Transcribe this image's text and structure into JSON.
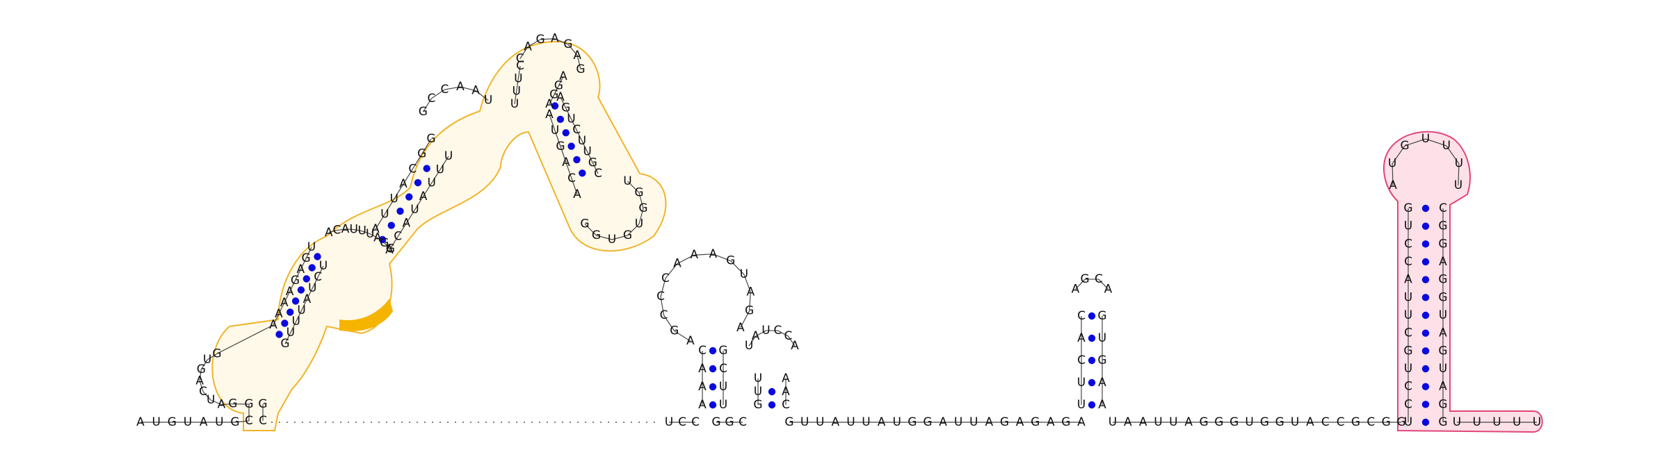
{
  "diagram": {
    "type": "rna-secondary-structure",
    "colors": {
      "background": "#ffffff",
      "nucleotide_text": "#111111",
      "backbone": "#444444",
      "base_pair_dot": "#0a0adf",
      "domain_orange_outline": "#f0b429",
      "domain_orange_fill": "#fff9ea",
      "domain_orange_highlight": "#f5b400",
      "domain_pink_outline": "#e0457a",
      "domain_pink_fill": "#fde0e8"
    },
    "domains": [
      {
        "name": "orange-domain",
        "color": "#f0b429",
        "highlighted_bases": 3
      },
      {
        "name": "pink-domain",
        "color": "#e0457a"
      }
    ],
    "strands": {
      "five_prime_leader": "AUGUAUG",
      "orange_left_stem": "CAUAGUAUAAAAGAGUACAUUUAGGCCAAUUUCAGAG",
      "orange_right_stem": "AGUCUUGCUGGUGUGGACAUAAGUUGAUUACAUGUGGGCUCUUUGAC",
      "spacer": "",
      "mid_hairpins": "UCCAAAAGCCCAAAGUAGAGACUUGGCUUAUCCAAACG",
      "linker_1": "GUUAUUAUGGAUUAGAGAGA",
      "small_hairpin": "UUCAACGCAAGUGAAA",
      "linker_2": "UAAUUAGGGUGGUACCGCGG",
      "pink_stem_left": "GUCCAUUCGUCCU",
      "pink_loop": "AUGUUUU",
      "pink_stem_right": "GGAUGAUGGAGGC",
      "three_prime_tail": "UUUUU"
    }
  }
}
